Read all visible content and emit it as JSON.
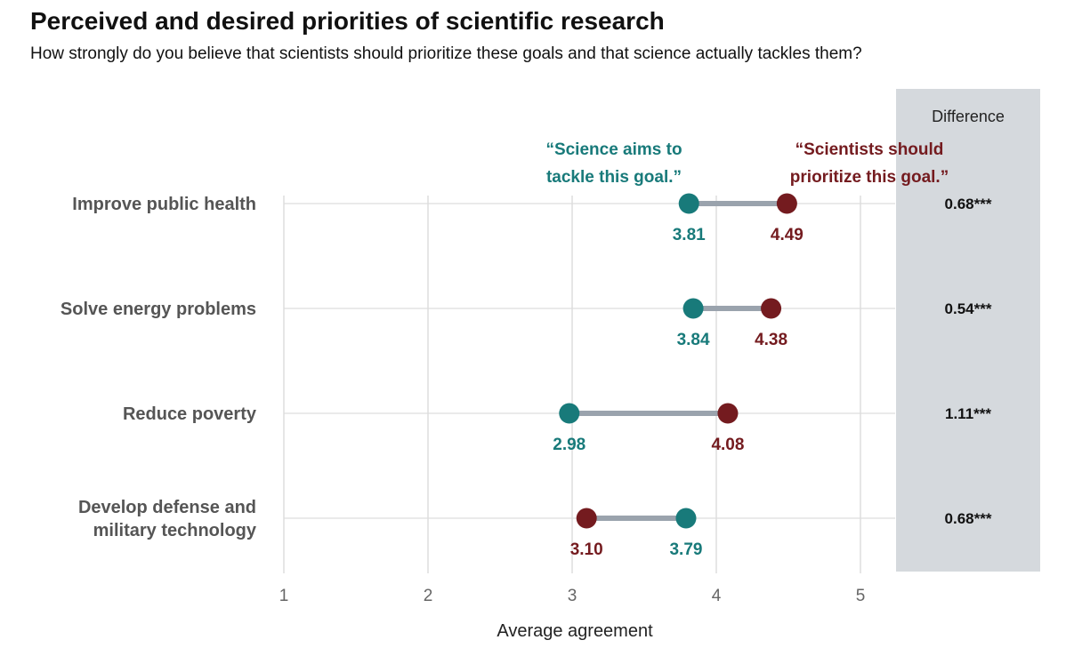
{
  "chart_data": {
    "type": "dumbbell",
    "title": "Perceived and desired priorities of scientific research",
    "subtitle": "How strongly do you believe that scientists should prioritize these goals and that science actually tackles them?",
    "xlabel": "Average agreement",
    "xlim": [
      1,
      5
    ],
    "xticks": [
      1,
      2,
      3,
      4,
      5
    ],
    "grid": true,
    "difference_header": "Difference",
    "series": [
      {
        "key": "aims",
        "name_lines": [
          "“Science aims to",
          "tackle this goal.”"
        ],
        "color": "#187A7A"
      },
      {
        "key": "should",
        "name_lines": [
          "“Scientists should",
          "prioritize this goal.”"
        ],
        "color": "#741B1F"
      }
    ],
    "categories": [
      {
        "label_lines": [
          "Improve public health"
        ],
        "aims": 3.81,
        "should": 4.49,
        "aims_label": "3.81",
        "should_label": "4.49",
        "difference": "0.68***"
      },
      {
        "label_lines": [
          "Solve energy problems"
        ],
        "aims": 3.84,
        "should": 4.38,
        "aims_label": "3.84",
        "should_label": "4.38",
        "difference": "0.54***"
      },
      {
        "label_lines": [
          "Reduce poverty"
        ],
        "aims": 2.98,
        "should": 4.08,
        "aims_label": "2.98",
        "should_label": "4.08",
        "difference": "1.11***"
      },
      {
        "label_lines": [
          "Develop defense and",
          "military technology"
        ],
        "aims": 3.79,
        "should": 3.1,
        "aims_label": "3.79",
        "should_label": "3.10",
        "difference": "0.68***"
      }
    ],
    "colors": {
      "connector": "#9AA3AD",
      "difference_panel": "#D5D9DD",
      "grid": "#DDDDDD"
    }
  }
}
